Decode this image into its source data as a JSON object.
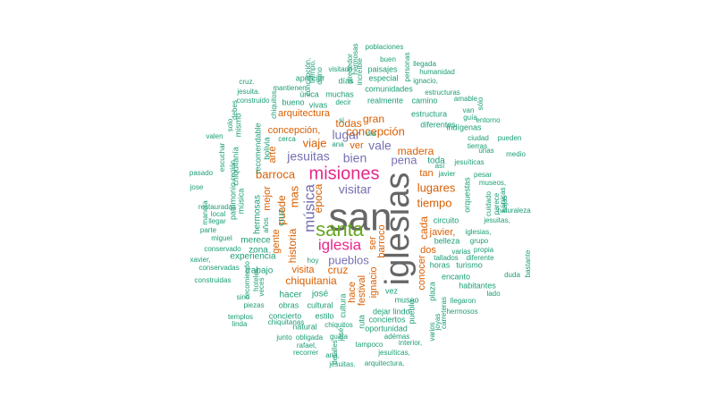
{
  "colors": {
    "teal": "#1b9e77",
    "orange": "#d95f02",
    "purple": "#7570b3",
    "magenta": "#e7298a",
    "green": "#66a61e",
    "gray": "#666666"
  },
  "words": [
    {
      "text": "san",
      "color": "gray"
    },
    {
      "text": "iglesias",
      "color": "gray"
    },
    {
      "text": "misiones",
      "color": "magenta"
    },
    {
      "text": "santa",
      "color": "green"
    },
    {
      "text": "iglesia",
      "color": "magenta"
    },
    {
      "text": "jesuitas",
      "color": "purple"
    },
    {
      "text": "música",
      "color": "purple"
    },
    {
      "text": "bien",
      "color": "purple"
    },
    {
      "text": "lugar",
      "color": "purple"
    },
    {
      "text": "vale",
      "color": "purple"
    },
    {
      "text": "pena",
      "color": "purple"
    },
    {
      "text": "visitar",
      "color": "purple"
    },
    {
      "text": "pueblos",
      "color": "purple"
    },
    {
      "text": "concepción",
      "color": "orange"
    },
    {
      "text": "barroca",
      "color": "orange"
    },
    {
      "text": "mas",
      "color": "orange"
    },
    {
      "text": "época",
      "color": "orange"
    },
    {
      "text": "viaje",
      "color": "orange"
    },
    {
      "text": "lugares",
      "color": "orange"
    },
    {
      "text": "tiempo",
      "color": "orange"
    },
    {
      "text": "madera",
      "color": "orange"
    },
    {
      "text": "puede",
      "color": "orange"
    },
    {
      "text": "historia",
      "color": "orange"
    },
    {
      "text": "chiquitania",
      "color": "orange"
    },
    {
      "text": "cruz",
      "color": "orange"
    },
    {
      "text": "cada",
      "color": "orange"
    },
    {
      "text": "gran",
      "color": "orange"
    },
    {
      "text": "todas",
      "color": "orange"
    },
    {
      "text": "concepción,",
      "color": "orange"
    },
    {
      "text": "arquitectura",
      "color": "orange"
    },
    {
      "text": "mejor",
      "color": "orange"
    },
    {
      "text": "gente",
      "color": "orange"
    },
    {
      "text": "visita",
      "color": "orange"
    },
    {
      "text": "tan",
      "color": "orange"
    },
    {
      "text": "dos",
      "color": "orange"
    },
    {
      "text": "javier,",
      "color": "orange"
    },
    {
      "text": "barroco",
      "color": "orange"
    },
    {
      "text": "ser",
      "color": "orange"
    },
    {
      "text": "ver",
      "color": "orange"
    },
    {
      "text": "ignacio",
      "color": "orange"
    },
    {
      "text": "festival",
      "color": "orange"
    },
    {
      "text": "conocer",
      "color": "orange"
    },
    {
      "text": "hace",
      "color": "orange"
    },
    {
      "text": "arte",
      "color": "orange"
    },
    {
      "text": "toda",
      "color": "teal"
    },
    {
      "text": "josé",
      "color": "teal"
    },
    {
      "text": "cruz,",
      "color": "teal"
    },
    {
      "text": "experiencia",
      "color": "teal"
    },
    {
      "text": "merece",
      "color": "teal"
    },
    {
      "text": "hermosas",
      "color": "teal"
    },
    {
      "text": "zona",
      "color": "teal"
    },
    {
      "text": "trabajo",
      "color": "teal"
    },
    {
      "text": "hacer",
      "color": "teal"
    },
    {
      "text": "cultural",
      "color": "teal"
    },
    {
      "text": "obras",
      "color": "teal"
    },
    {
      "text": "cultura",
      "color": "teal"
    },
    {
      "text": "museo",
      "color": "teal"
    },
    {
      "text": "vez",
      "color": "teal"
    },
    {
      "text": "dejar",
      "color": "teal"
    },
    {
      "text": "lindo",
      "color": "teal"
    },
    {
      "text": "circuito",
      "color": "teal"
    },
    {
      "text": "belleza",
      "color": "teal"
    },
    {
      "text": "horas",
      "color": "teal"
    },
    {
      "text": "turismo",
      "color": "teal"
    },
    {
      "text": "encanto",
      "color": "teal"
    },
    {
      "text": "habitantes",
      "color": "teal"
    },
    {
      "text": "plaza",
      "color": "teal"
    },
    {
      "text": "pueblo",
      "color": "teal"
    },
    {
      "text": "ruta",
      "color": "teal"
    },
    {
      "text": "conciertos",
      "color": "teal"
    },
    {
      "text": "oportunidad",
      "color": "teal"
    },
    {
      "text": "natural",
      "color": "teal"
    },
    {
      "text": "estilo",
      "color": "teal"
    },
    {
      "text": "concierto",
      "color": "teal"
    },
    {
      "text": "diferentes",
      "color": "teal"
    },
    {
      "text": "indígenas",
      "color": "teal"
    },
    {
      "text": "estructura",
      "color": "teal"
    },
    {
      "text": "comunidades",
      "color": "teal"
    },
    {
      "text": "especial",
      "color": "teal"
    },
    {
      "text": "paisajes",
      "color": "teal"
    },
    {
      "text": "realmente",
      "color": "teal"
    },
    {
      "text": "camino",
      "color": "teal"
    },
    {
      "text": "días",
      "color": "teal"
    },
    {
      "text": "muchas",
      "color": "teal"
    },
    {
      "text": "única",
      "color": "teal"
    },
    {
      "text": "apreciar",
      "color": "teal"
    },
    {
      "text": "bueno",
      "color": "teal"
    },
    {
      "text": "vivas",
      "color": "teal"
    },
    {
      "text": "cerca",
      "color": "teal"
    },
    {
      "text": "recomendable",
      "color": "teal"
    },
    {
      "text": "bolivia",
      "color": "teal"
    },
    {
      "text": "mismo",
      "color": "teal"
    },
    {
      "text": "patrimonio",
      "color": "teal"
    },
    {
      "text": "música",
      "color": "teal"
    },
    {
      "text": "chiquitanía",
      "color": "teal"
    },
    {
      "text": "años",
      "color": "teal"
    },
    {
      "text": "ana",
      "color": "teal"
    },
    {
      "text": "día",
      "color": "teal"
    },
    {
      "text": "javier",
      "color": "teal"
    },
    {
      "text": "así",
      "color": "teal"
    },
    {
      "text": "jesuíticas",
      "color": "teal"
    },
    {
      "text": "tierras",
      "color": "teal"
    },
    {
      "text": "unas",
      "color": "teal"
    },
    {
      "text": "medio",
      "color": "teal"
    },
    {
      "text": "ciudad",
      "color": "teal"
    },
    {
      "text": "pueden",
      "color": "teal"
    },
    {
      "text": "orquestas",
      "color": "teal"
    },
    {
      "text": "museos,",
      "color": "teal"
    },
    {
      "text": "pesar",
      "color": "teal"
    },
    {
      "text": "iglesias,",
      "color": "teal"
    },
    {
      "text": "grupo",
      "color": "teal"
    },
    {
      "text": "propia",
      "color": "teal"
    },
    {
      "text": "tallados",
      "color": "teal"
    },
    {
      "text": "diferente",
      "color": "teal"
    },
    {
      "text": "varias",
      "color": "teal"
    },
    {
      "text": "lado",
      "color": "teal"
    },
    {
      "text": "duda",
      "color": "teal"
    },
    {
      "text": "llegaron",
      "color": "teal"
    },
    {
      "text": "hermosos",
      "color": "teal"
    },
    {
      "text": "bastante",
      "color": "teal"
    },
    {
      "text": "cuidado",
      "color": "teal"
    },
    {
      "text": "parece",
      "color": "teal"
    },
    {
      "text": "únicas",
      "color": "teal"
    },
    {
      "text": "bajas",
      "color": "teal"
    },
    {
      "text": "jesuitas,",
      "color": "teal"
    },
    {
      "text": "guía",
      "color": "teal"
    },
    {
      "text": "van",
      "color": "teal"
    },
    {
      "text": "entorno",
      "color": "teal"
    },
    {
      "text": "amable",
      "color": "teal"
    },
    {
      "text": "sólo",
      "color": "teal"
    },
    {
      "text": "estructuras",
      "color": "teal"
    },
    {
      "text": "ignacio,",
      "color": "teal"
    },
    {
      "text": "humanidad",
      "color": "teal"
    },
    {
      "text": "llegada",
      "color": "teal"
    },
    {
      "text": "buen",
      "color": "teal"
    },
    {
      "text": "poblaciones",
      "color": "teal"
    },
    {
      "text": "personas",
      "color": "teal"
    },
    {
      "text": "hermosas",
      "color": "teal"
    },
    {
      "text": "increíble",
      "color": "teal"
    },
    {
      "text": "alrededor",
      "color": "teal"
    },
    {
      "text": "visitado",
      "color": "teal"
    },
    {
      "text": "tiempo,",
      "color": "teal"
    },
    {
      "text": "digno",
      "color": "teal"
    },
    {
      "text": "concepción,",
      "color": "teal"
    },
    {
      "text": "mantienen",
      "color": "teal"
    },
    {
      "text": "decir",
      "color": "teal"
    },
    {
      "text": "si",
      "color": "teal"
    },
    {
      "text": "cruz.",
      "color": "teal"
    },
    {
      "text": "jesuita.",
      "color": "teal"
    },
    {
      "text": "construido",
      "color": "teal"
    },
    {
      "text": "chiquitos,",
      "color": "teal"
    },
    {
      "text": "debes",
      "color": "teal"
    },
    {
      "text": "solo",
      "color": "teal"
    },
    {
      "text": "valen",
      "color": "teal"
    },
    {
      "text": "escuchar",
      "color": "teal"
    },
    {
      "text": "región,",
      "color": "teal"
    },
    {
      "text": "pasado",
      "color": "teal"
    },
    {
      "text": "jose",
      "color": "teal"
    },
    {
      "text": "manera",
      "color": "teal"
    },
    {
      "text": "restauradas",
      "color": "teal"
    },
    {
      "text": "local",
      "color": "teal"
    },
    {
      "text": "llegar",
      "color": "teal"
    },
    {
      "text": "parte",
      "color": "teal"
    },
    {
      "text": "miguel",
      "color": "teal"
    },
    {
      "text": "xavier,",
      "color": "teal"
    },
    {
      "text": "conservado",
      "color": "teal"
    },
    {
      "text": "conservadas",
      "color": "teal"
    },
    {
      "text": "construidas",
      "color": "teal"
    },
    {
      "text": "recomiendo",
      "color": "teal"
    },
    {
      "text": "hoteles",
      "color": "teal"
    },
    {
      "text": "veces",
      "color": "teal"
    },
    {
      "text": "sino",
      "color": "teal"
    },
    {
      "text": "piezas",
      "color": "teal"
    },
    {
      "text": "templos",
      "color": "teal"
    },
    {
      "text": "linda",
      "color": "teal"
    },
    {
      "text": "chiquitanas",
      "color": "teal"
    },
    {
      "text": "junto",
      "color": "teal"
    },
    {
      "text": "obligada",
      "color": "teal"
    },
    {
      "text": "rafael,",
      "color": "teal"
    },
    {
      "text": "recorrer",
      "color": "teal"
    },
    {
      "text": "detalles",
      "color": "teal"
    },
    {
      "text": "josé,",
      "color": "teal"
    },
    {
      "text": "guata",
      "color": "teal"
    },
    {
      "text": "chiquitos",
      "color": "teal"
    },
    {
      "text": "hoy",
      "color": "teal"
    },
    {
      "text": "ana,",
      "color": "teal"
    },
    {
      "text": "jesuitas.",
      "color": "teal"
    },
    {
      "text": "arquitectura,",
      "color": "teal"
    },
    {
      "text": "jesuíticas,",
      "color": "teal"
    },
    {
      "text": "tampoco",
      "color": "teal"
    },
    {
      "text": "adémas",
      "color": "teal"
    },
    {
      "text": "interior,",
      "color": "teal"
    },
    {
      "text": "varios",
      "color": "teal"
    },
    {
      "text": "joyas",
      "color": "teal"
    },
    {
      "text": "carreteras",
      "color": "teal"
    },
    {
      "text": "naturaleza",
      "color": "teal"
    },
    {
      "text": "jesuitas,",
      "color": "teal"
    }
  ]
}
